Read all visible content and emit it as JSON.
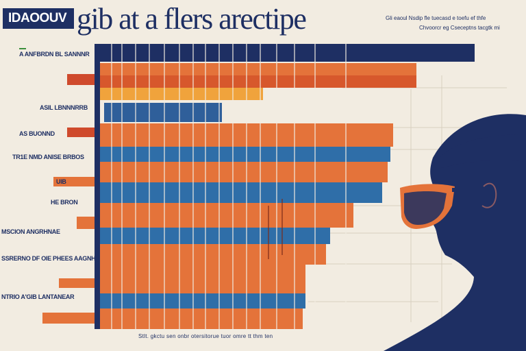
{
  "header": {
    "badge": "IDAOOUV",
    "title": "gib at a flers arectipe",
    "note_line1": "Gli eaoul Nsdip fle tuecasd e toefu ef thfe",
    "note_line2": "Chvoorcr eg Cseceptns tacgtk mi"
  },
  "row_labels": [
    "A ANFBRDN BL SANNNR",
    "ASIL LBNNNRRB",
    "AS BUONND",
    "TR1E NMD ANISE BRBOS",
    "UIB",
    "HE BRON",
    "MSCION ANGRHNAE",
    "SSRERNO DF OIE PHEES AAGNHE",
    "NTRIO A'GIB LANTANEAR"
  ],
  "footer": "Stlt. gkctu sen onbr otersitorue tuor omre tt thm ten",
  "colors": {
    "background": "#f2ece1",
    "navy": "#1e2f63",
    "orange": "#e4733a",
    "blue": "#2f6ea8",
    "red": "#cf4a2c",
    "yellow": "#f0a33c"
  },
  "icons": [
    "person-silhouette-icon",
    "sunglasses-icon"
  ]
}
